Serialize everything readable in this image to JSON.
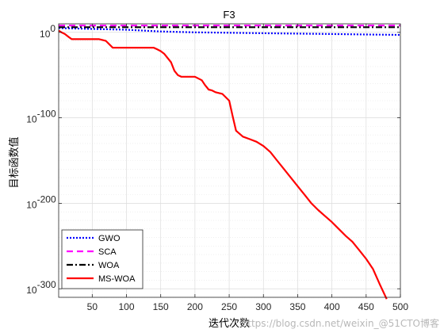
{
  "chart_data": {
    "type": "line",
    "title": "F3",
    "xlabel": "迭代次数",
    "ylabel": "目标函数值",
    "yscale": "log",
    "xlim": [
      1,
      500
    ],
    "ylim_exponent": [
      -310,
      10
    ],
    "xticks": [
      50,
      100,
      150,
      200,
      250,
      300,
      350,
      400,
      450,
      500
    ],
    "yticks": [
      {
        "exp": 0,
        "label": "10"
      },
      {
        "exp": -100,
        "label": "10"
      },
      {
        "exp": -200,
        "label": "10"
      },
      {
        "exp": -300,
        "label": "10"
      }
    ],
    "ytick_exponents": [
      "0",
      "-100",
      "-200",
      "-300"
    ],
    "grid": true,
    "legend_position": "bottom-left",
    "series": [
      {
        "name": "GWO",
        "color": "#0000ff",
        "style": "dotted",
        "x": [
          1,
          50,
          100,
          150,
          200,
          250,
          300,
          350,
          400,
          450,
          500
        ],
        "log10_y": [
          5,
          4,
          3,
          1,
          0,
          -0.5,
          -1,
          -1.5,
          -2,
          -2.5,
          -3
        ]
      },
      {
        "name": "SCA",
        "color": "#ff00ff",
        "style": "dashed",
        "x": [
          1,
          500
        ],
        "log10_y": [
          8,
          8
        ]
      },
      {
        "name": "WOA",
        "color": "#000000",
        "style": "dashdot",
        "x": [
          1,
          500
        ],
        "log10_y": [
          6,
          6
        ]
      },
      {
        "name": "MS-WOA",
        "color": "#ff0000",
        "style": "solid",
        "x": [
          1,
          5,
          10,
          15,
          20,
          50,
          60,
          70,
          80,
          100,
          120,
          140,
          145,
          150,
          155,
          165,
          170,
          175,
          180,
          200,
          210,
          215,
          220,
          225,
          230,
          240,
          250,
          255,
          260,
          270,
          280,
          290,
          300,
          310,
          320,
          330,
          340,
          350,
          360,
          370,
          380,
          390,
          400,
          410,
          420,
          430,
          440,
          450,
          460,
          470,
          480
        ],
        "log10_y": [
          2,
          0,
          -2,
          -5,
          -8,
          -8,
          -8,
          -10,
          -18,
          -18,
          -18,
          -18,
          -20,
          -22,
          -25,
          -35,
          -45,
          -50,
          -52,
          -52,
          -56,
          -62,
          -67,
          -68,
          -70,
          -72,
          -80,
          -98,
          -115,
          -122,
          -125,
          -128,
          -133,
          -140,
          -150,
          -160,
          -170,
          -180,
          -190,
          -200,
          -208,
          -215,
          -222,
          -230,
          -238,
          -245,
          -255,
          -265,
          -277,
          -295,
          -312
        ]
      }
    ]
  },
  "watermark": "https://blog.csdn.net/weixin_@51CTO博客"
}
